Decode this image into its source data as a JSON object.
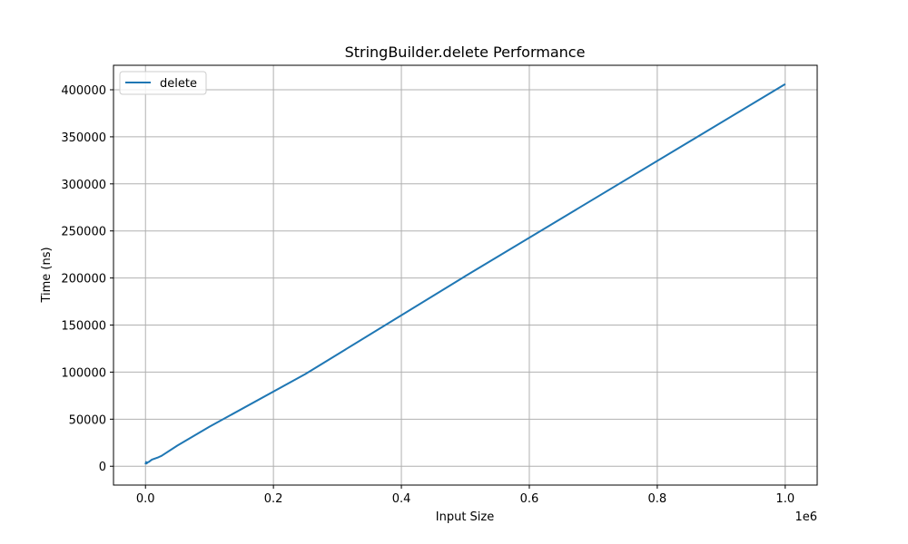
{
  "chart_data": {
    "type": "line",
    "title": "StringBuilder.delete Performance",
    "xlabel": "Input Size",
    "ylabel": "Time (ns)",
    "x_offset_label": "1e6",
    "xlim": [
      -50000,
      1050000
    ],
    "ylim": [
      -20000,
      426000
    ],
    "x_ticks": [
      0,
      200000,
      400000,
      600000,
      800000,
      1000000
    ],
    "x_tick_labels": [
      "0.0",
      "0.2",
      "0.4",
      "0.6",
      "0.8",
      "1.0"
    ],
    "y_ticks": [
      0,
      50000,
      100000,
      150000,
      200000,
      250000,
      300000,
      350000,
      400000
    ],
    "y_tick_labels": [
      "0",
      "50000",
      "100000",
      "150000",
      "200000",
      "250000",
      "300000",
      "350000",
      "400000"
    ],
    "grid": true,
    "legend_position": "top-left",
    "series": [
      {
        "name": "delete",
        "color": "#1f77b4",
        "x": [
          0,
          1000,
          2000,
          3000,
          5000,
          10000,
          20000,
          25000,
          50000,
          100000,
          250000,
          500000,
          1000000
        ],
        "y": [
          2000,
          4500,
          3000,
          4000,
          4500,
          7000,
          9500,
          11000,
          22000,
          42000,
          98000,
          202000,
          406000
        ]
      }
    ]
  }
}
